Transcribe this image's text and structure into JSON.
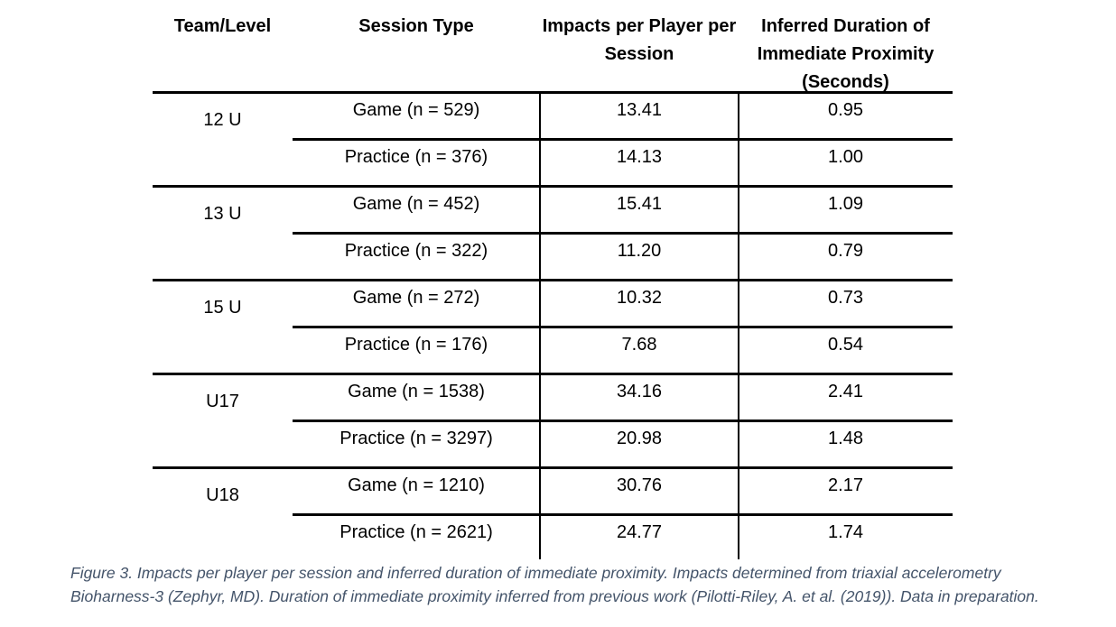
{
  "table": {
    "headers": [
      "Team/Level",
      "Session Type",
      "Impacts per Player per Session",
      "Inferred Duration of Immediate Proximity (Seconds)"
    ],
    "groups": [
      {
        "team": "12 U",
        "rows": [
          [
            "Game (n = 529)",
            "13.41",
            "0.95"
          ],
          [
            "Practice (n = 376)",
            "14.13",
            "1.00"
          ]
        ]
      },
      {
        "team": "13 U",
        "rows": [
          [
            "Game (n = 452)",
            "15.41",
            "1.09"
          ],
          [
            "Practice (n = 322)",
            "11.20",
            "0.79"
          ]
        ]
      },
      {
        "team": "15 U",
        "rows": [
          [
            "Game (n = 272)",
            "10.32",
            "0.73"
          ],
          [
            "Practice (n = 176)",
            "7.68",
            "0.54"
          ]
        ]
      },
      {
        "team": "U17",
        "rows": [
          [
            "Game (n = 1538)",
            "34.16",
            "2.41"
          ],
          [
            "Practice (n = 3297)",
            "20.98",
            "1.48"
          ]
        ]
      },
      {
        "team": "U18",
        "rows": [
          [
            "Game (n = 1210)",
            "30.76",
            "2.17"
          ],
          [
            "Practice (n = 2621)",
            "24.77",
            "1.74"
          ]
        ]
      }
    ]
  },
  "caption": "Figure 3. Impacts per player per session and inferred duration of immediate proximity.  Impacts determined from triaxial accelerometry Bioharness-3 (Zephyr, MD).  Duration of immediate proximity inferred from previous work (Pilotti-Riley, A. et al. (2019)).  Data in preparation."
}
